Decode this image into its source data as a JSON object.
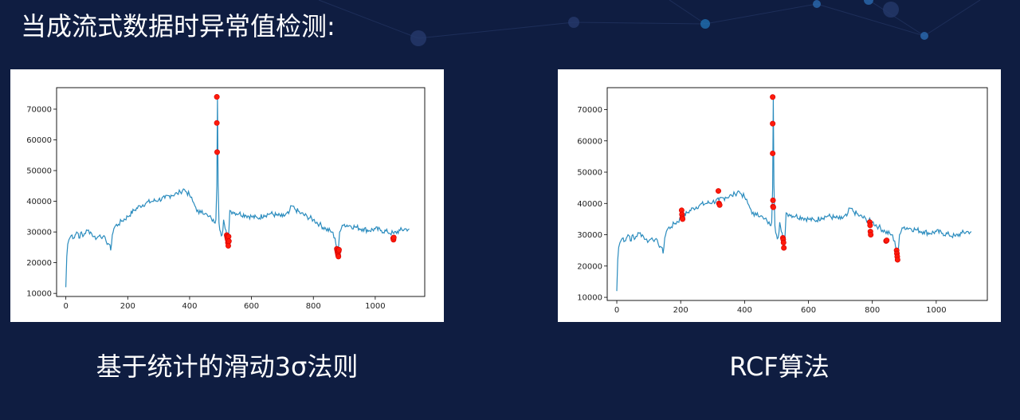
{
  "slide": {
    "title": "当成流式数据时异常值检测:",
    "captions": [
      "基于统计的滑动3σ法则",
      "RCF算法"
    ]
  },
  "colors": {
    "background": "#0f1d41",
    "line": "#2b8cbe",
    "anomaly": "#ff1a0a"
  },
  "chart_data": [
    {
      "type": "line",
      "title": "基于统计的滑动3σ法则",
      "xlim": [
        -30,
        1160
      ],
      "ylim": [
        9000,
        77000
      ],
      "xticks": [
        0,
        200,
        400,
        600,
        800,
        1000
      ],
      "yticks": [
        10000,
        20000,
        30000,
        40000,
        50000,
        60000,
        70000
      ],
      "grid": false,
      "series": [
        {
          "x": [
            0,
            3,
            6,
            10,
            15,
            20,
            25,
            30,
            35,
            40,
            45,
            50,
            55,
            60,
            70,
            80,
            90,
            100,
            110,
            120,
            130,
            140,
            145,
            150,
            155,
            160,
            170,
            180,
            200,
            220,
            240,
            260,
            280,
            300,
            320,
            340,
            360,
            370,
            380,
            390,
            400,
            410,
            420,
            430,
            440,
            450,
            460,
            470,
            480,
            485,
            488,
            490,
            492,
            495,
            500,
            505,
            510,
            515,
            520,
            525,
            530,
            540,
            560,
            580,
            600,
            620,
            640,
            660,
            680,
            700,
            720,
            730,
            740,
            760,
            780,
            800,
            820,
            840,
            860,
            870,
            875,
            878,
            880,
            882,
            885,
            890,
            900,
            920,
            940,
            960,
            980,
            1000,
            1020,
            1040,
            1060,
            1080,
            1100,
            1110
          ],
          "y": [
            12000,
            22000,
            26000,
            27500,
            28500,
            29000,
            28000,
            29000,
            30000,
            29500,
            28000,
            30000,
            28500,
            29500,
            30500,
            30000,
            28500,
            28000,
            29000,
            28500,
            27000,
            26000,
            24000,
            29000,
            31000,
            32000,
            32500,
            33500,
            35000,
            37000,
            38500,
            39500,
            40000,
            40500,
            41000,
            42000,
            42500,
            43000,
            44000,
            43000,
            42000,
            40000,
            38000,
            36000,
            37000,
            36000,
            35000,
            34500,
            33000,
            34000,
            45000,
            74000,
            46000,
            33000,
            30000,
            29000,
            34000,
            31000,
            29000,
            27000,
            37000,
            36500,
            36000,
            35500,
            35000,
            34500,
            35500,
            36000,
            35500,
            35000,
            36000,
            38500,
            37500,
            36000,
            35000,
            34000,
            32500,
            31000,
            30000,
            28000,
            25000,
            22000,
            23000,
            26000,
            30000,
            31000,
            32500,
            32000,
            31500,
            31000,
            30500,
            31000,
            30500,
            30000,
            29500,
            30500,
            31000,
            31000
          ]
        }
      ],
      "anomalies": {
        "x": [
          488,
          488,
          489,
          520,
          521,
          522,
          523,
          524,
          525,
          526,
          527,
          876,
          877,
          878,
          879,
          880,
          881,
          882,
          883,
          1058,
          1059,
          1060
        ],
        "y": [
          74000,
          65500,
          56000,
          29000,
          28500,
          28000,
          27500,
          26500,
          25500,
          28500,
          27000,
          24500,
          24000,
          23500,
          23000,
          22500,
          22000,
          23800,
          24200,
          28000,
          27500,
          28200
        ]
      }
    },
    {
      "type": "line",
      "title": "RCF算法",
      "xlim": [
        -30,
        1160
      ],
      "ylim": [
        9000,
        77000
      ],
      "xticks": [
        0,
        200,
        400,
        600,
        800,
        1000
      ],
      "yticks": [
        10000,
        20000,
        30000,
        40000,
        50000,
        60000,
        70000
      ],
      "grid": false,
      "series": [
        {
          "x": [
            0,
            3,
            6,
            10,
            15,
            20,
            25,
            30,
            35,
            40,
            45,
            50,
            55,
            60,
            70,
            80,
            90,
            100,
            110,
            120,
            130,
            140,
            145,
            150,
            155,
            160,
            170,
            180,
            200,
            220,
            240,
            260,
            280,
            300,
            320,
            340,
            360,
            370,
            380,
            390,
            400,
            410,
            420,
            430,
            440,
            450,
            460,
            470,
            480,
            485,
            488,
            490,
            492,
            495,
            500,
            505,
            510,
            515,
            520,
            525,
            530,
            540,
            560,
            580,
            600,
            620,
            640,
            660,
            680,
            700,
            720,
            730,
            740,
            760,
            780,
            800,
            820,
            840,
            860,
            870,
            875,
            878,
            880,
            882,
            885,
            890,
            900,
            920,
            940,
            960,
            980,
            1000,
            1020,
            1040,
            1060,
            1080,
            1100,
            1110
          ],
          "y": [
            12000,
            22000,
            26000,
            27500,
            28500,
            29000,
            28000,
            29000,
            30000,
            29500,
            28000,
            30000,
            28500,
            29500,
            30500,
            30000,
            28500,
            28000,
            29000,
            28500,
            27000,
            26000,
            24000,
            29000,
            31000,
            32000,
            32500,
            33500,
            35000,
            37000,
            38500,
            39500,
            40000,
            40500,
            41000,
            42000,
            42500,
            43000,
            44000,
            43000,
            42000,
            40000,
            38000,
            36000,
            37000,
            36000,
            35000,
            34500,
            33000,
            34000,
            45000,
            74000,
            46000,
            33000,
            30000,
            29000,
            34000,
            31000,
            29000,
            27000,
            37000,
            36500,
            36000,
            35500,
            35000,
            34500,
            35500,
            36000,
            35500,
            35000,
            36000,
            38500,
            37500,
            36000,
            35000,
            34000,
            32500,
            31000,
            30000,
            28000,
            25000,
            22000,
            23000,
            26000,
            30000,
            31000,
            32500,
            32000,
            31500,
            31000,
            30500,
            31000,
            30500,
            30000,
            29500,
            30500,
            31000,
            31000
          ]
        }
      ],
      "anomalies": {
        "x": [
          203,
          204,
          205,
          206,
          318,
          320,
          322,
          488,
          488,
          488,
          489,
          489,
          490,
          520,
          521,
          522,
          523,
          792,
          793,
          794,
          795,
          843,
          845,
          876,
          877,
          878,
          879
        ],
        "y": [
          37800,
          36500,
          35500,
          35000,
          44000,
          40000,
          39500,
          74000,
          65500,
          56000,
          41000,
          39000,
          38800,
          29000,
          28500,
          27500,
          25800,
          34000,
          33000,
          31000,
          30000,
          28000,
          28200,
          25000,
          24000,
          23000,
          22000
        ]
      }
    }
  ]
}
